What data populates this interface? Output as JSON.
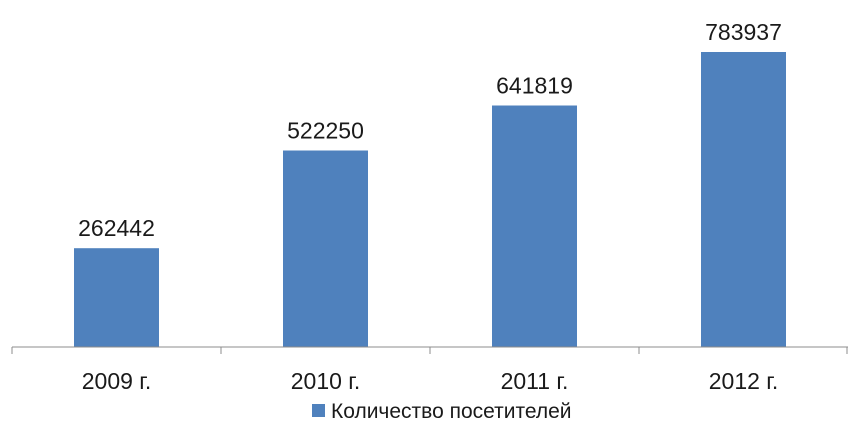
{
  "chart_data": {
    "type": "bar",
    "categories": [
      "2009 г.",
      "2010 г.",
      "2011 г.",
      "2012 г."
    ],
    "series": [
      {
        "name": "Количество посетителей",
        "values": [
          262442,
          522250,
          641819,
          783937
        ],
        "color": "#4f81bd"
      }
    ],
    "data_labels": [
      "262442",
      "522250",
      "641819",
      "783937"
    ],
    "title": "",
    "xlabel": "",
    "ylabel": "",
    "ylim": [
      0,
      800000
    ],
    "grid": false,
    "legend_position": "bottom"
  },
  "colors": {
    "axis": "#8c8c8c",
    "text": "#1a1a1a",
    "background": "#ffffff"
  }
}
